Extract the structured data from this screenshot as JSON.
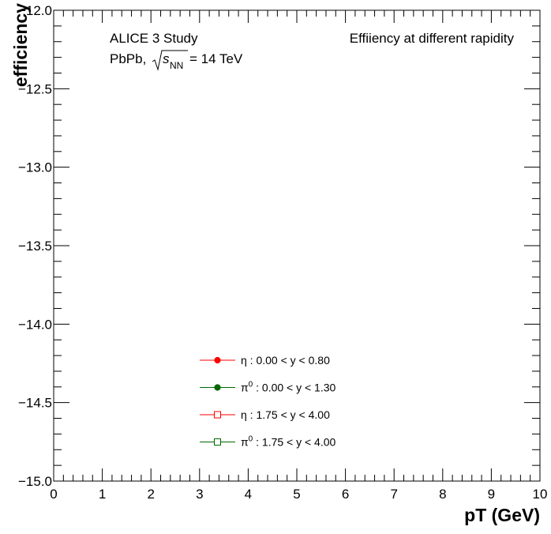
{
  "chart_data": {
    "type": "scatter",
    "title": "Effiiency at different rapidity",
    "xlabel": "pT (GeV)",
    "ylabel": "efficiency",
    "xlim": [
      0,
      10
    ],
    "ylim": [
      -15.0,
      -12.0
    ],
    "x_ticks": [
      "0",
      "1",
      "2",
      "3",
      "4",
      "5",
      "6",
      "7",
      "8",
      "9",
      "10"
    ],
    "y_ticks": [
      "−15.0",
      "−14.5",
      "−14.0",
      "−13.5",
      "−13.0",
      "−12.5",
      "−12.0"
    ],
    "grid": false,
    "legend_position": "lower-center",
    "annotations": {
      "line1": "ALICE 3 Study",
      "line2_prefix": "PbPb,",
      "line2_s": "s",
      "line2_sub": "NN",
      "line2_suffix": "= 14 TeV"
    },
    "series": [
      {
        "name": "η : 0.00 < y < 0.80",
        "name_parts": [
          "η",
          "",
          " : 0.00 < y < 0.80"
        ],
        "color": "#ff0000",
        "marker": "filled-circle",
        "values": []
      },
      {
        "name": "π⁰ : 0.00 < y < 1.30",
        "name_parts": [
          "π",
          "0",
          " : 0.00 < y < 1.30"
        ],
        "color": "#006600",
        "marker": "filled-circle",
        "values": []
      },
      {
        "name": "η : 1.75 < y < 4.00",
        "name_parts": [
          "η",
          "",
          " : 1.75 < y < 4.00"
        ],
        "color": "#ff0000",
        "marker": "open-square",
        "values": []
      },
      {
        "name": "π⁰ : 1.75 < y < 4.00",
        "name_parts": [
          "π",
          "0",
          " : 1.75 < y < 4.00"
        ],
        "color": "#006600",
        "marker": "open-square",
        "values": []
      }
    ]
  }
}
